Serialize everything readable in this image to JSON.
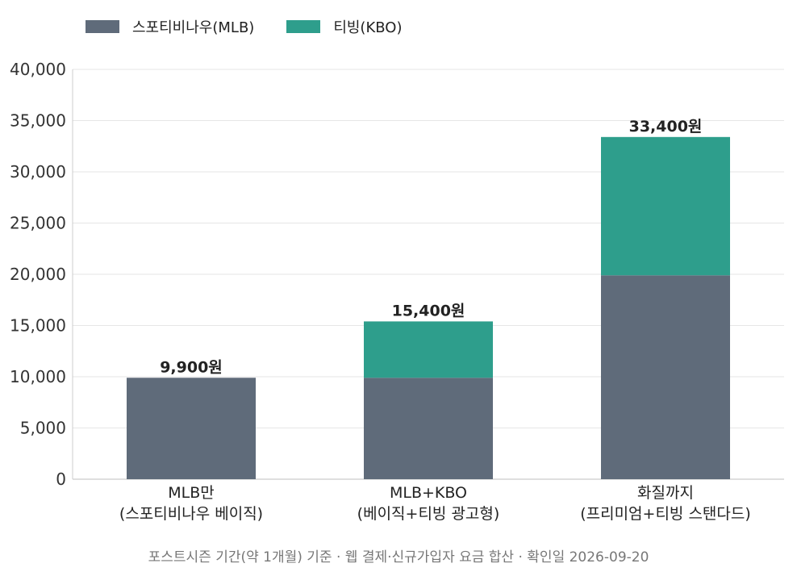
{
  "chart_data": {
    "type": "bar",
    "stacked": true,
    "categories": [
      [
        "MLB만",
        "(스포티비나우 베이직)"
      ],
      [
        "MLB+KBO",
        "(베이직+티빙 광고형)"
      ],
      [
        "화질까지",
        "(프리미엄+티빙 스탠다드)"
      ]
    ],
    "series": [
      {
        "name": "스포티비나우(MLB)",
        "color": "#5f6b7a",
        "values": [
          9900,
          9900,
          19900
        ]
      },
      {
        "name": "티빙(KBO)",
        "color": "#2e9e8c",
        "values": [
          0,
          5500,
          13500
        ]
      }
    ],
    "totals_labels": [
      "9,900원",
      "15,400원",
      "33,400원"
    ],
    "ylim": [
      0,
      40000
    ],
    "yticks": [
      0,
      5000,
      10000,
      15000,
      20000,
      25000,
      30000,
      35000,
      40000
    ],
    "ytick_labels": [
      "0",
      "5,000",
      "10,000",
      "15,000",
      "20,000",
      "25,000",
      "30,000",
      "35,000",
      "40,000"
    ],
    "grid": true,
    "legend_position": "top-left",
    "title": "",
    "xlabel": "",
    "ylabel": ""
  },
  "footnote": "포스트시즌 기간(약 1개월) 기준 · 웹 결제·신규가입자 요금 합산 · 확인일 2026-09-20"
}
